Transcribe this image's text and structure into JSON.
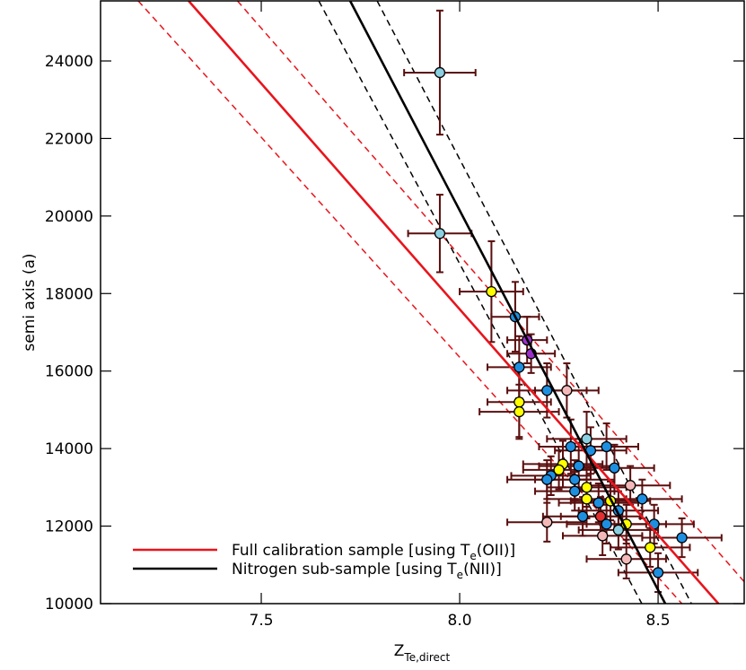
{
  "chart_data": {
    "type": "scatter",
    "x_label": {
      "text": "Z",
      "sub": "Te,direct"
    },
    "y_label": "semi axis (a)",
    "xlim": [
      7.095,
      8.717
    ],
    "ylim": [
      10000,
      25550
    ],
    "xticks": [
      7.5,
      {
        "value": 8.0,
        "label": "8.0"
      },
      8.5
    ],
    "yticks": [
      10000,
      12000,
      14000,
      16000,
      18000,
      20000,
      22000,
      24000
    ],
    "legend_position": "lower left",
    "error_color": "#5a0e0e",
    "points": {
      "x": [
        7.95,
        7.95,
        8.08,
        8.14,
        8.17,
        8.18,
        8.15,
        8.27,
        8.22,
        8.15,
        8.15,
        8.32,
        8.37,
        8.28,
        8.33,
        8.39,
        8.26,
        8.3,
        8.23,
        8.22,
        8.29,
        8.25,
        8.43,
        8.32,
        8.29,
        8.46,
        8.32,
        8.35,
        8.38,
        8.4,
        8.355,
        8.31,
        8.42,
        8.49,
        8.22,
        8.37,
        8.36,
        8.48,
        8.56,
        8.42,
        8.5,
        8.4
      ],
      "values": [
        23700,
        19550,
        18050,
        17400,
        16800,
        16450,
        16100,
        15500,
        15500,
        15200,
        14950,
        14250,
        14050,
        14050,
        13950,
        13500,
        13600,
        13550,
        13300,
        13200,
        13200,
        13450,
        13050,
        13000,
        12900,
        12700,
        12700,
        12600,
        12650,
        12400,
        12250,
        12250,
        12050,
        12050,
        12100,
        12050,
        11750,
        11450,
        11700,
        11150,
        10800,
        11900
      ],
      "xerr": [
        0.09,
        0.08,
        0.08,
        0.06,
        0.05,
        0.06,
        0.08,
        0.08,
        0.1,
        0.08,
        0.1,
        0.1,
        0.08,
        0.08,
        0.09,
        0.1,
        0.1,
        0.1,
        0.1,
        0.1,
        0.1,
        0.09,
        0.1,
        0.1,
        0.1,
        0.1,
        0.1,
        0.1,
        0.1,
        0.1,
        0.1,
        0.1,
        0.1,
        0.1,
        0.1,
        0.1,
        0.1,
        0.1,
        0.1,
        0.1,
        0.1,
        0.1
      ],
      "yerr": [
        1600,
        1000,
        1300,
        900,
        600,
        500,
        800,
        700,
        700,
        900,
        700,
        700,
        600,
        700,
        600,
        600,
        600,
        600,
        500,
        500,
        500,
        500,
        500,
        500,
        500,
        500,
        500,
        500,
        500,
        500,
        500,
        500,
        500,
        500,
        500,
        500,
        500,
        500,
        500,
        500,
        500,
        500
      ],
      "colors": [
        "#8ccfe0",
        "#8ccfe0",
        "#ffff00",
        "#1e8fe0",
        "#9b30c8",
        "#9b30c8",
        "#1e8fe0",
        "#f4b8b8",
        "#1e8fe0",
        "#ffff00",
        "#ffff00",
        "#8ccfe0",
        "#1e8fe0",
        "#1e8fe0",
        "#1e8fe0",
        "#1e8fe0",
        "#ffff00",
        "#1e8fe0",
        "#1e8fe0",
        "#1e8fe0",
        "#1e8fe0",
        "#ffff00",
        "#f4b8b8",
        "#ffff00",
        "#1e8fe0",
        "#1e8fe0",
        "#ffff00",
        "#1e8fe0",
        "#ffff00",
        "#1e8fe0",
        "#e03030",
        "#1e8fe0",
        "#ffff00",
        "#1e8fe0",
        "#f4b8b8",
        "#1e8fe0",
        "#f4b8b8",
        "#ffff00",
        "#1e8fe0",
        "#f4b8b8",
        "#1e8fe0",
        "#8ccfe0"
      ]
    },
    "series": [
      {
        "name": {
          "text": "Full calibration sample [using T",
          "sub": "e",
          "tail": "(OII)]"
        },
        "color": "#e8141c",
        "x": [
          7.317,
          8.652
        ],
        "values": [
          25550,
          10000
        ]
      },
      {
        "name": {
          "text": "Nitrogen sub-sample [using T",
          "sub": "e",
          "tail": "(NII)]"
        },
        "color": "#000000",
        "x": [
          7.724,
          8.518
        ],
        "values": [
          25550,
          10000
        ]
      }
    ],
    "dashed_lines": [
      {
        "color": "#e8141c",
        "x": [
          7.19,
          8.56
        ],
        "values": [
          25550,
          10000
        ]
      },
      {
        "color": "#e8141c",
        "x": [
          7.44,
          8.72
        ],
        "values": [
          25550,
          10530
        ]
      },
      {
        "color": "#000000",
        "x": [
          7.645,
          8.459
        ],
        "values": [
          25550,
          10000
        ]
      },
      {
        "color": "#000000",
        "x": [
          7.792,
          8.584
        ],
        "values": [
          25550,
          10000
        ]
      }
    ]
  }
}
